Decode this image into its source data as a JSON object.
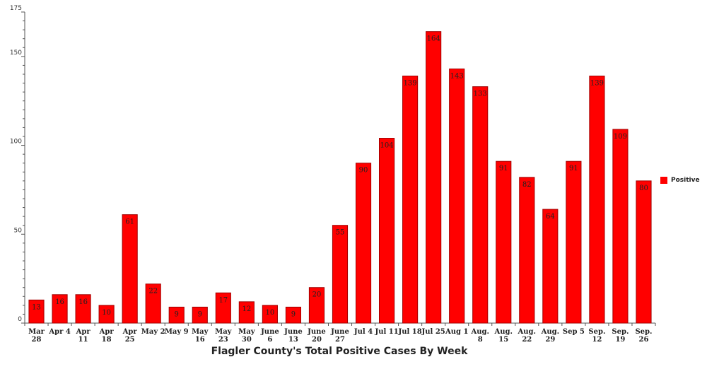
{
  "chart_data": {
    "type": "bar",
    "title": "Flagler County's Total Positive Cases By Week",
    "xlabel": "",
    "ylabel": "",
    "ylim": [
      0,
      175
    ],
    "yticks": [
      "0",
      "50",
      "100",
      "150",
      "175"
    ],
    "legend_position": "right",
    "grid": false,
    "categories": [
      [
        "Mar",
        "28"
      ],
      [
        "Apr 4"
      ],
      [
        "Apr",
        "11"
      ],
      [
        "Apr",
        "18"
      ],
      [
        "Apr",
        "25"
      ],
      [
        "May 2"
      ],
      [
        "May 9"
      ],
      [
        "May",
        "16"
      ],
      [
        "May",
        "23"
      ],
      [
        "May",
        "30"
      ],
      [
        "June",
        "6"
      ],
      [
        "June",
        "13"
      ],
      [
        "June",
        "20"
      ],
      [
        "June",
        "27"
      ],
      [
        "Jul 4"
      ],
      [
        "Jul 11"
      ],
      [
        "Jul 18"
      ],
      [
        "Jul 25"
      ],
      [
        "Aug 1"
      ],
      [
        "Aug.",
        "8"
      ],
      [
        "Aug.",
        "15"
      ],
      [
        "Aug.",
        "22"
      ],
      [
        "Aug.",
        "29"
      ],
      [
        "Sep 5"
      ],
      [
        "Sep.",
        "12"
      ],
      [
        "Sep.",
        "19"
      ],
      [
        "Sep.",
        "26"
      ]
    ],
    "series": [
      {
        "name": "Positive",
        "color": "#ff0000",
        "values": [
          13,
          16,
          16,
          10,
          61,
          22,
          9,
          9,
          17,
          12,
          10,
          9,
          20,
          55,
          90,
          104,
          139,
          164,
          143,
          133,
          91,
          82,
          64,
          91,
          139,
          109,
          80
        ]
      }
    ]
  }
}
